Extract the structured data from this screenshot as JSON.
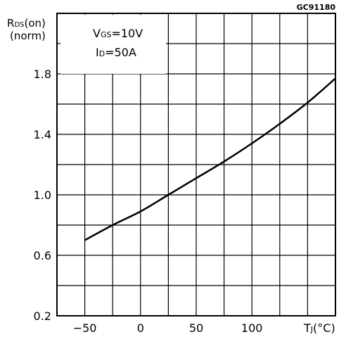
{
  "chart_data": {
    "type": "line",
    "figure_code": "GC91180",
    "ylabel": {
      "main": "R",
      "sub": "DS",
      "suffix": "(on)",
      "unit": "(norm)"
    },
    "xlabel": {
      "main": "T",
      "sub": "J",
      "suffix": "(°C)"
    },
    "annotation": {
      "line1_main": "V",
      "line1_sub": "GS",
      "line1_rest": "=10V",
      "line2_main": "I",
      "line2_sub": "D",
      "line2_rest": "=50A"
    },
    "xlim": [
      -75,
      175
    ],
    "ylim": [
      0.2,
      2.2
    ],
    "grid": true,
    "x_ticks": [
      {
        "value": -50,
        "label": "−50"
      },
      {
        "value": 0,
        "label": "0"
      },
      {
        "value": 50,
        "label": "50"
      },
      {
        "value": 100,
        "label": "100"
      }
    ],
    "y_ticks": [
      {
        "value": 0.2,
        "label": "0.2"
      },
      {
        "value": 0.6,
        "label": "0.6"
      },
      {
        "value": 1.0,
        "label": "1.0"
      },
      {
        "value": 1.4,
        "label": "1.4"
      },
      {
        "value": 1.8,
        "label": "1.8"
      }
    ],
    "series": [
      {
        "x": [
          -50,
          -25,
          0,
          25,
          50,
          75,
          100,
          125,
          150,
          175
        ],
        "y": [
          0.7,
          0.8,
          0.89,
          1.0,
          1.11,
          1.22,
          1.34,
          1.47,
          1.61,
          1.77
        ]
      }
    ]
  }
}
